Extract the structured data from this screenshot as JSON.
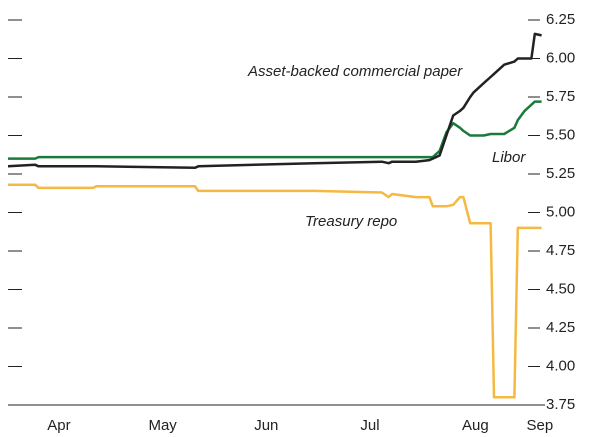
{
  "chart_data": {
    "type": "line",
    "x": [
      0,
      8,
      9,
      25,
      26,
      55,
      56,
      90,
      110,
      112,
      113,
      120,
      124,
      125,
      127,
      129,
      131,
      133,
      134,
      136,
      137,
      140,
      142,
      143,
      146,
      149,
      150,
      152,
      154,
      155,
      157
    ],
    "xlim": [
      0,
      158
    ],
    "xticks": [
      {
        "value": 15,
        "label": "Apr"
      },
      {
        "value": 45.5,
        "label": "May"
      },
      {
        "value": 76,
        "label": "Jun"
      },
      {
        "value": 106.5,
        "label": "Jul"
      },
      {
        "value": 137.5,
        "label": "Aug"
      },
      {
        "value": 156.5,
        "label": "Sep"
      }
    ],
    "ylim": [
      3.75,
      6.25
    ],
    "yticks": [
      3.75,
      {
        "value": 4,
        "label": "4.00"
      },
      4.25,
      {
        "value": 4.5,
        "label": "4.50"
      },
      4.75,
      {
        "value": 5,
        "label": "5.00"
      },
      5.25,
      {
        "value": 5.5,
        "label": "5.50"
      },
      5.75,
      {
        "value": 6,
        "label": "6.00"
      },
      6.25
    ],
    "series": [
      {
        "name": "Asset-backed commercial paper",
        "color": "#222222",
        "values": [
          5.3,
          5.31,
          5.3,
          5.3,
          5.3,
          5.29,
          5.3,
          5.32,
          5.33,
          5.32,
          5.33,
          5.33,
          5.34,
          5.35,
          5.37,
          5.5,
          5.63,
          5.66,
          5.68,
          5.75,
          5.78,
          5.84,
          5.88,
          5.9,
          5.96,
          5.98,
          6.0,
          6.0,
          6.0,
          6.16,
          6.15
        ]
      },
      {
        "name": "Libor",
        "color": "#1a7a3a",
        "values": [
          5.35,
          5.35,
          5.36,
          5.36,
          5.36,
          5.36,
          5.36,
          5.36,
          5.36,
          5.36,
          5.36,
          5.36,
          5.36,
          5.36,
          5.4,
          5.52,
          5.58,
          5.55,
          5.53,
          5.5,
          5.5,
          5.5,
          5.51,
          5.51,
          5.51,
          5.55,
          5.6,
          5.66,
          5.7,
          5.72,
          5.72
        ]
      },
      {
        "name": "Treasury repo",
        "color": "#f5b942",
        "values": [
          5.18,
          5.18,
          5.16,
          5.16,
          5.17,
          5.17,
          5.14,
          5.14,
          5.13,
          5.1,
          5.12,
          5.1,
          5.1,
          5.04,
          5.04,
          5.04,
          5.05,
          5.1,
          5.1,
          4.93,
          4.93,
          4.93,
          4.93,
          3.8,
          3.8,
          3.8,
          4.9,
          4.9,
          4.9,
          4.9,
          4.9
        ]
      }
    ]
  }
}
